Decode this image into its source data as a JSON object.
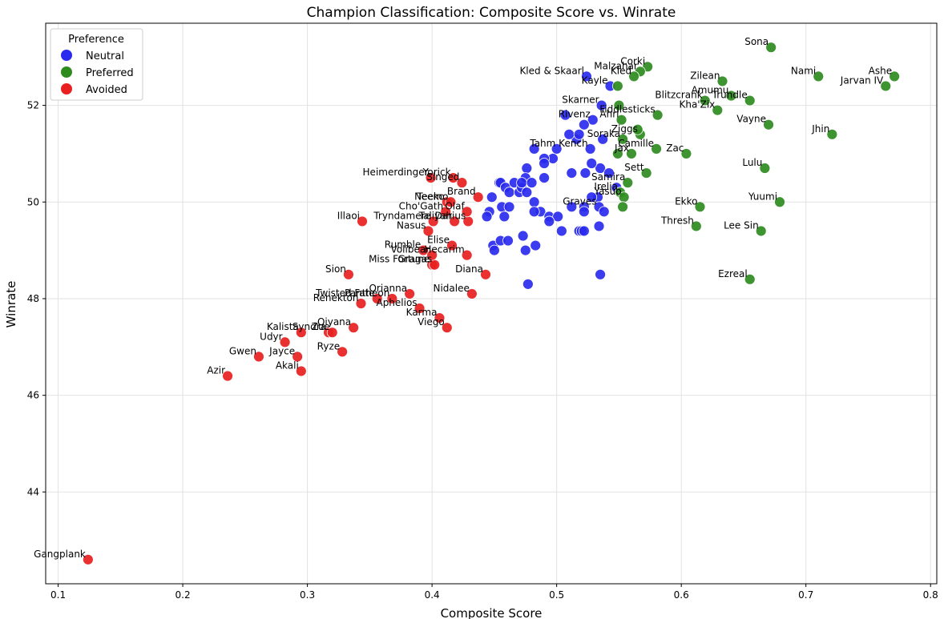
{
  "chart_data": {
    "type": "scatter",
    "title": "Champion Classification: Composite Score vs. Winrate",
    "xlabel": "Composite Score",
    "ylabel": "Winrate",
    "xlim": [
      0.09,
      0.805
    ],
    "ylim": [
      42.1,
      53.7
    ],
    "xticks": [
      0.1,
      0.2,
      0.3,
      0.4,
      0.5,
      0.6,
      0.7,
      0.8
    ],
    "yticks": [
      44,
      46,
      48,
      50,
      52
    ],
    "grid": true,
    "legend": {
      "title": "Preference",
      "position": "top-left",
      "entries": [
        {
          "name": "Neutral",
          "color": "#2a2aee"
        },
        {
          "name": "Preferred",
          "color": "#2e8b1e"
        },
        {
          "name": "Avoided",
          "color": "#e8201f"
        }
      ]
    },
    "series": [
      {
        "name": "Neutral",
        "color": "#2a2aee",
        "points": [
          {
            "x": 0.524,
            "y": 52.6,
            "label": "Kled & Skaarl"
          },
          {
            "x": 0.543,
            "y": 52.4,
            "label": "Kayle"
          },
          {
            "x": 0.536,
            "y": 52.0,
            "label": "Skarner"
          },
          {
            "x": 0.529,
            "y": 51.7,
            "label": "Rivenz"
          },
          {
            "x": 0.537,
            "y": 51.3,
            "label": ""
          },
          {
            "x": 0.527,
            "y": 51.1,
            "label": "Tahm Kench"
          },
          {
            "x": 0.535,
            "y": 50.7,
            "label": ""
          },
          {
            "x": 0.533,
            "y": 50.1,
            "label": ""
          },
          {
            "x": 0.534,
            "y": 49.9,
            "label": "Graves"
          },
          {
            "x": 0.534,
            "y": 49.5,
            "label": ""
          },
          {
            "x": 0.535,
            "y": 48.5,
            "label": ""
          },
          {
            "x": 0.507,
            "y": 51.8,
            "label": ""
          },
          {
            "x": 0.516,
            "y": 51.3,
            "label": ""
          },
          {
            "x": 0.522,
            "y": 51.6,
            "label": ""
          },
          {
            "x": 0.51,
            "y": 51.4,
            "label": ""
          },
          {
            "x": 0.518,
            "y": 51.4,
            "label": ""
          },
          {
            "x": 0.5,
            "y": 51.1,
            "label": ""
          },
          {
            "x": 0.497,
            "y": 50.9,
            "label": ""
          },
          {
            "x": 0.49,
            "y": 50.9,
            "label": ""
          },
          {
            "x": 0.49,
            "y": 50.8,
            "label": ""
          },
          {
            "x": 0.482,
            "y": 51.1,
            "label": ""
          },
          {
            "x": 0.476,
            "y": 50.7,
            "label": ""
          },
          {
            "x": 0.49,
            "y": 50.5,
            "label": ""
          },
          {
            "x": 0.512,
            "y": 50.6,
            "label": ""
          },
          {
            "x": 0.523,
            "y": 50.6,
            "label": ""
          },
          {
            "x": 0.528,
            "y": 50.8,
            "label": ""
          },
          {
            "x": 0.542,
            "y": 50.6,
            "label": ""
          },
          {
            "x": 0.548,
            "y": 50.3,
            "label": ""
          },
          {
            "x": 0.528,
            "y": 50.1,
            "label": ""
          },
          {
            "x": 0.512,
            "y": 49.9,
            "label": ""
          },
          {
            "x": 0.522,
            "y": 49.9,
            "label": ""
          },
          {
            "x": 0.522,
            "y": 49.8,
            "label": ""
          },
          {
            "x": 0.538,
            "y": 49.8,
            "label": ""
          },
          {
            "x": 0.482,
            "y": 50.0,
            "label": ""
          },
          {
            "x": 0.487,
            "y": 49.8,
            "label": ""
          },
          {
            "x": 0.494,
            "y": 49.7,
            "label": ""
          },
          {
            "x": 0.501,
            "y": 49.7,
            "label": ""
          },
          {
            "x": 0.494,
            "y": 49.6,
            "label": ""
          },
          {
            "x": 0.482,
            "y": 49.8,
            "label": ""
          },
          {
            "x": 0.504,
            "y": 49.4,
            "label": ""
          },
          {
            "x": 0.518,
            "y": 49.4,
            "label": ""
          },
          {
            "x": 0.52,
            "y": 49.4,
            "label": ""
          },
          {
            "x": 0.522,
            "y": 49.4,
            "label": ""
          },
          {
            "x": 0.473,
            "y": 49.3,
            "label": ""
          },
          {
            "x": 0.483,
            "y": 49.1,
            "label": ""
          },
          {
            "x": 0.475,
            "y": 49.0,
            "label": ""
          },
          {
            "x": 0.477,
            "y": 48.3,
            "label": ""
          },
          {
            "x": 0.448,
            "y": 50.1,
            "label": ""
          },
          {
            "x": 0.454,
            "y": 50.4,
            "label": ""
          },
          {
            "x": 0.455,
            "y": 50.4,
            "label": ""
          },
          {
            "x": 0.459,
            "y": 50.3,
            "label": ""
          },
          {
            "x": 0.462,
            "y": 50.2,
            "label": ""
          },
          {
            "x": 0.466,
            "y": 50.4,
            "label": ""
          },
          {
            "x": 0.47,
            "y": 50.2,
            "label": ""
          },
          {
            "x": 0.472,
            "y": 50.3,
            "label": ""
          },
          {
            "x": 0.475,
            "y": 50.5,
            "label": ""
          },
          {
            "x": 0.476,
            "y": 50.2,
            "label": ""
          },
          {
            "x": 0.472,
            "y": 50.4,
            "label": ""
          },
          {
            "x": 0.48,
            "y": 50.4,
            "label": ""
          },
          {
            "x": 0.456,
            "y": 49.9,
            "label": ""
          },
          {
            "x": 0.462,
            "y": 49.9,
            "label": ""
          },
          {
            "x": 0.446,
            "y": 49.8,
            "label": ""
          },
          {
            "x": 0.444,
            "y": 49.7,
            "label": ""
          },
          {
            "x": 0.458,
            "y": 49.7,
            "label": ""
          },
          {
            "x": 0.449,
            "y": 49.1,
            "label": ""
          },
          {
            "x": 0.45,
            "y": 49.0,
            "label": ""
          },
          {
            "x": 0.455,
            "y": 49.2,
            "label": ""
          },
          {
            "x": 0.461,
            "y": 49.2,
            "label": ""
          }
        ]
      },
      {
        "name": "Preferred",
        "color": "#2e8b1e",
        "points": [
          {
            "x": 0.672,
            "y": 53.2,
            "label": "Sona"
          },
          {
            "x": 0.573,
            "y": 52.8,
            "label": "Corki"
          },
          {
            "x": 0.567,
            "y": 52.7,
            "label": "Malzahar"
          },
          {
            "x": 0.562,
            "y": 52.6,
            "label": "Kled"
          },
          {
            "x": 0.549,
            "y": 52.4,
            "label": ""
          },
          {
            "x": 0.71,
            "y": 52.6,
            "label": "Nami"
          },
          {
            "x": 0.771,
            "y": 52.6,
            "label": "Ashe"
          },
          {
            "x": 0.764,
            "y": 52.4,
            "label": "Jarvan IV"
          },
          {
            "x": 0.633,
            "y": 52.5,
            "label": "Zilean"
          },
          {
            "x": 0.64,
            "y": 52.2,
            "label": "Amumu"
          },
          {
            "x": 0.655,
            "y": 52.1,
            "label": "Trundle"
          },
          {
            "x": 0.619,
            "y": 52.1,
            "label": "Blitzcrank"
          },
          {
            "x": 0.629,
            "y": 51.9,
            "label": "Kha'Zix"
          },
          {
            "x": 0.55,
            "y": 52.0,
            "label": ""
          },
          {
            "x": 0.581,
            "y": 51.8,
            "label": "Fiddlesticks"
          },
          {
            "x": 0.552,
            "y": 51.7,
            "label": "Ahri"
          },
          {
            "x": 0.67,
            "y": 51.6,
            "label": "Vayne"
          },
          {
            "x": 0.721,
            "y": 51.4,
            "label": "Jhin"
          },
          {
            "x": 0.567,
            "y": 51.4,
            "label": "Ziggs"
          },
          {
            "x": 0.565,
            "y": 51.5,
            "label": ""
          },
          {
            "x": 0.553,
            "y": 51.3,
            "label": "Soraka"
          },
          {
            "x": 0.58,
            "y": 51.1,
            "label": "Camille"
          },
          {
            "x": 0.56,
            "y": 51.0,
            "label": "Jax"
          },
          {
            "x": 0.549,
            "y": 51.0,
            "label": ""
          },
          {
            "x": 0.604,
            "y": 51.0,
            "label": "Zac"
          },
          {
            "x": 0.667,
            "y": 50.7,
            "label": "Lulu"
          },
          {
            "x": 0.572,
            "y": 50.6,
            "label": "Sett"
          },
          {
            "x": 0.557,
            "y": 50.4,
            "label": "Samira"
          },
          {
            "x": 0.551,
            "y": 50.2,
            "label": "Irelia"
          },
          {
            "x": 0.554,
            "y": 50.1,
            "label": "Yasuo"
          },
          {
            "x": 0.679,
            "y": 50.0,
            "label": "Yuumi"
          },
          {
            "x": 0.615,
            "y": 49.9,
            "label": "Ekko"
          },
          {
            "x": 0.553,
            "y": 49.9,
            "label": ""
          },
          {
            "x": 0.612,
            "y": 49.5,
            "label": "Thresh"
          },
          {
            "x": 0.664,
            "y": 49.4,
            "label": "Lee Sin"
          },
          {
            "x": 0.655,
            "y": 48.4,
            "label": "Ezreal"
          }
        ]
      },
      {
        "name": "Avoided",
        "color": "#e8201f",
        "points": [
          {
            "x": 0.124,
            "y": 42.6,
            "label": "Gangplank"
          },
          {
            "x": 0.236,
            "y": 46.4,
            "label": "Azir"
          },
          {
            "x": 0.261,
            "y": 46.8,
            "label": "Gwen"
          },
          {
            "x": 0.292,
            "y": 46.8,
            "label": "Jayce"
          },
          {
            "x": 0.295,
            "y": 46.5,
            "label": "Akali"
          },
          {
            "x": 0.282,
            "y": 47.1,
            "label": "Udyr"
          },
          {
            "x": 0.295,
            "y": 47.3,
            "label": "Kalista"
          },
          {
            "x": 0.317,
            "y": 47.3,
            "label": "Syndra"
          },
          {
            "x": 0.32,
            "y": 47.3,
            "label": "Zoe"
          },
          {
            "x": 0.328,
            "y": 46.9,
            "label": "Ryze"
          },
          {
            "x": 0.337,
            "y": 47.4,
            "label": "Qiyana"
          },
          {
            "x": 0.333,
            "y": 48.5,
            "label": "Sion"
          },
          {
            "x": 0.343,
            "y": 47.9,
            "label": "Renekton"
          },
          {
            "x": 0.356,
            "y": 48.0,
            "label": "Twisted Fate"
          },
          {
            "x": 0.368,
            "y": 48.0,
            "label": "Pantheon"
          },
          {
            "x": 0.382,
            "y": 48.1,
            "label": "Orianna"
          },
          {
            "x": 0.39,
            "y": 47.8,
            "label": "Aphelios"
          },
          {
            "x": 0.406,
            "y": 47.6,
            "label": "Karma"
          },
          {
            "x": 0.412,
            "y": 47.4,
            "label": "Viego"
          },
          {
            "x": 0.432,
            "y": 48.1,
            "label": "Nidalee"
          },
          {
            "x": 0.443,
            "y": 48.5,
            "label": "Diana"
          },
          {
            "x": 0.4,
            "y": 48.7,
            "label": "Miss Fortune"
          },
          {
            "x": 0.402,
            "y": 48.7,
            "label": "Gragas"
          },
          {
            "x": 0.393,
            "y": 49.0,
            "label": "Rumble"
          },
          {
            "x": 0.4,
            "y": 48.9,
            "label": "Volibear"
          },
          {
            "x": 0.428,
            "y": 48.9,
            "label": "Hecarim"
          },
          {
            "x": 0.416,
            "y": 49.1,
            "label": "Elise"
          },
          {
            "x": 0.397,
            "y": 49.4,
            "label": "Nasus"
          },
          {
            "x": 0.344,
            "y": 49.6,
            "label": "Illaoi"
          },
          {
            "x": 0.401,
            "y": 49.6,
            "label": "Tryndamere"
          },
          {
            "x": 0.418,
            "y": 49.6,
            "label": "Taliyah"
          },
          {
            "x": 0.429,
            "y": 49.6,
            "label": "Darius"
          },
          {
            "x": 0.411,
            "y": 49.8,
            "label": "Cho'Gath"
          },
          {
            "x": 0.428,
            "y": 49.8,
            "label": "Olaf"
          },
          {
            "x": 0.412,
            "y": 50.0,
            "label": "Neeko"
          },
          {
            "x": 0.415,
            "y": 50.0,
            "label": "Teemo"
          },
          {
            "x": 0.437,
            "y": 50.1,
            "label": "Brand"
          },
          {
            "x": 0.399,
            "y": 50.5,
            "label": "Heimerdinger"
          },
          {
            "x": 0.417,
            "y": 50.5,
            "label": "Yorick"
          },
          {
            "x": 0.424,
            "y": 50.4,
            "label": "Singed"
          }
        ]
      }
    ]
  }
}
